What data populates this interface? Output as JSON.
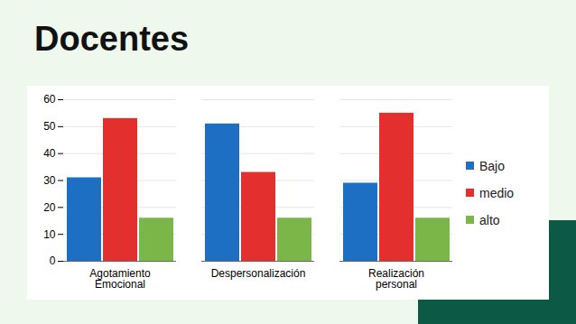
{
  "chart_data": {
    "type": "bar",
    "title": "Docentes",
    "categories": [
      "Agotamiento Emocional",
      "Despersonalización",
      "Realización personal"
    ],
    "series": [
      {
        "name": "Bajo",
        "color": "#1c6fc2",
        "values": [
          31,
          51,
          29
        ]
      },
      {
        "name": "medio",
        "color": "#e3302f",
        "values": [
          53,
          33,
          55
        ]
      },
      {
        "name": "alto",
        "color": "#7ab648",
        "values": [
          16,
          16,
          16
        ]
      }
    ],
    "ylim": [
      0,
      60
    ],
    "yticks": [
      0,
      10,
      20,
      30,
      40,
      50,
      60
    ],
    "grid": true,
    "legend": "right"
  }
}
